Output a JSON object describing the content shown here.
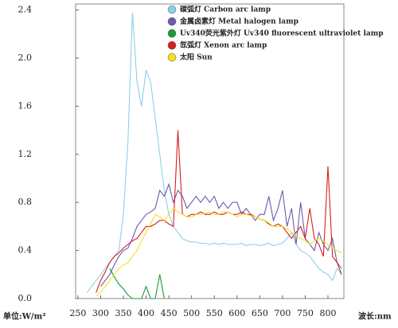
{
  "chart_data": {
    "type": "line",
    "xlabel": "波长:nm",
    "ylabel": "单位:W/m²",
    "x": [
      260,
      270,
      280,
      290,
      300,
      310,
      320,
      330,
      340,
      350,
      360,
      370,
      380,
      390,
      400,
      410,
      420,
      430,
      440,
      450,
      460,
      470,
      480,
      490,
      500,
      510,
      520,
      530,
      540,
      550,
      560,
      570,
      580,
      590,
      600,
      610,
      620,
      630,
      640,
      650,
      660,
      670,
      680,
      690,
      700,
      710,
      720,
      730,
      740,
      750,
      760,
      770,
      780,
      790,
      800,
      810,
      820,
      830
    ],
    "series": [
      {
        "name": "碳弧灯 Carbon arc lamp",
        "color": "#8ccfe8",
        "values": [
          null,
          0.05,
          0.1,
          0.15,
          0.2,
          0.25,
          0.3,
          0.35,
          0.4,
          0.7,
          1.3,
          2.38,
          1.8,
          1.6,
          1.9,
          1.8,
          1.5,
          1.2,
          0.9,
          0.7,
          0.6,
          0.55,
          0.5,
          0.48,
          0.47,
          0.47,
          0.46,
          0.46,
          0.45,
          0.46,
          0.45,
          0.46,
          0.45,
          0.45,
          0.45,
          0.46,
          0.44,
          0.45,
          0.45,
          0.44,
          0.45,
          0.46,
          0.44,
          0.45,
          0.46,
          0.5,
          0.55,
          0.45,
          0.4,
          0.38,
          0.35,
          0.3,
          0.25,
          0.22,
          0.2,
          0.15,
          0.25,
          0.2
        ]
      },
      {
        "name": "金属卤素灯 Metal halogen lamp",
        "color": "#6a5bb0",
        "values": [
          null,
          null,
          null,
          null,
          0.1,
          0.15,
          0.2,
          0.28,
          0.35,
          0.4,
          0.42,
          0.5,
          0.6,
          0.65,
          0.7,
          0.72,
          0.75,
          0.9,
          0.85,
          0.95,
          0.8,
          0.9,
          0.85,
          0.75,
          0.8,
          0.85,
          0.8,
          0.85,
          0.8,
          0.85,
          0.75,
          0.8,
          0.75,
          0.8,
          0.8,
          0.7,
          0.75,
          0.7,
          0.65,
          0.7,
          0.7,
          0.85,
          0.65,
          0.75,
          0.9,
          0.6,
          0.75,
          0.45,
          0.8,
          0.5,
          0.45,
          0.4,
          0.55,
          0.45,
          0.4,
          0.5,
          0.3,
          0.25
        ]
      },
      {
        "name": "Uv340荧光紫外灯 Uv340 fluorescent ultraviolet lamp",
        "color": "#1a9a3a",
        "values": [
          null,
          null,
          null,
          null,
          null,
          null,
          0.25,
          0.18,
          0.12,
          0.08,
          0.03,
          0,
          0,
          0,
          0.1,
          0,
          0,
          0.2,
          0,
          null,
          null,
          null,
          null,
          null,
          null,
          null,
          null,
          null,
          null,
          null,
          null,
          null,
          null,
          null,
          null,
          null,
          null,
          null,
          null,
          null,
          null,
          null,
          null,
          null,
          null,
          null,
          null,
          null,
          null,
          null,
          null,
          null,
          null,
          null,
          null,
          null,
          null,
          null
        ]
      },
      {
        "name": "氙弧灯 Xenon arc lamp",
        "color": "#d42020",
        "values": [
          null,
          null,
          null,
          0.05,
          0.15,
          0.22,
          0.3,
          0.35,
          0.38,
          0.42,
          0.45,
          0.48,
          0.5,
          0.55,
          0.6,
          0.6,
          0.62,
          0.65,
          0.65,
          0.62,
          0.6,
          1.4,
          0.7,
          0.68,
          0.7,
          0.7,
          0.72,
          0.7,
          0.7,
          0.72,
          0.7,
          0.7,
          0.72,
          0.7,
          0.7,
          0.72,
          0.7,
          0.7,
          0.68,
          0.66,
          0.65,
          0.62,
          0.6,
          0.62,
          0.6,
          0.55,
          0.5,
          0.55,
          0.6,
          0.5,
          0.75,
          0.5,
          0.45,
          0.35,
          1.1,
          0.35,
          0.3,
          0.2
        ]
      },
      {
        "name": "太阳 Sun",
        "color": "#f2e21e",
        "values": [
          null,
          null,
          null,
          0.02,
          0.05,
          0.1,
          0.15,
          0.2,
          0.25,
          0.28,
          0.3,
          0.35,
          0.4,
          0.48,
          0.55,
          0.62,
          0.7,
          0.68,
          0.65,
          0.7,
          0.75,
          0.72,
          0.7,
          0.68,
          0.68,
          0.7,
          0.7,
          0.71,
          0.72,
          0.7,
          0.7,
          0.72,
          0.72,
          0.7,
          0.68,
          0.7,
          0.7,
          0.69,
          0.68,
          0.66,
          0.65,
          0.63,
          0.6,
          0.6,
          0.6,
          0.58,
          0.55,
          0.52,
          0.5,
          0.48,
          0.45,
          0.48,
          0.5,
          0.48,
          0.45,
          0.42,
          0.4,
          0.38
        ]
      }
    ],
    "xlim": [
      245,
      835
    ],
    "ylim": [
      0,
      2.45
    ],
    "xticks": [
      250,
      300,
      350,
      400,
      450,
      500,
      550,
      600,
      650,
      700,
      750,
      800
    ],
    "yticks": [
      {
        "value": 0,
        "label": "0.0"
      },
      {
        "value": 0.4,
        "label": "0.4"
      },
      {
        "value": 0.8,
        "label": "0.8"
      },
      {
        "value": 1.2,
        "label": "1.2"
      },
      {
        "value": 1.6,
        "label": "1.6"
      },
      {
        "value": 2.0,
        "label": "2.0"
      },
      {
        "value": 2.4,
        "label": "2.4"
      }
    ],
    "grid": false
  }
}
